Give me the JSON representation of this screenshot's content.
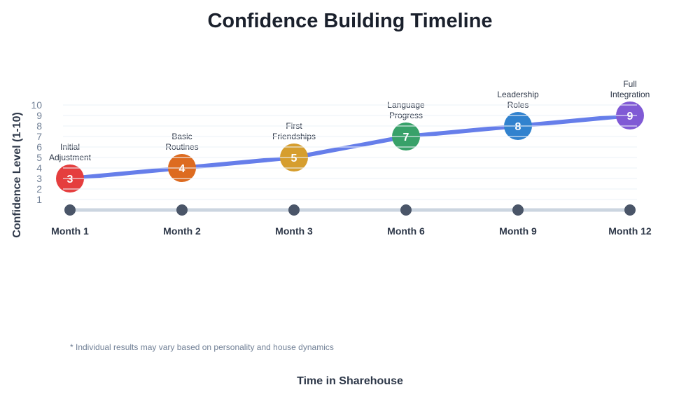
{
  "chart_data": {
    "type": "line",
    "title": "Confidence Building Timeline",
    "xlabel": "Time in Sharehouse",
    "ylabel": "Confidence Level (1-10)",
    "footnote": "* Individual results may vary based on personality and house dynamics",
    "ylim": [
      0,
      10
    ],
    "yticks": [
      1,
      2,
      3,
      4,
      5,
      6,
      7,
      8,
      9,
      10
    ],
    "grid": true,
    "line_color": "#667eea",
    "categories": [
      "Month 1",
      "Month 2",
      "Month 3",
      "Month 6",
      "Month 9",
      "Month 12"
    ],
    "points": [
      {
        "label": [
          "Initial",
          "Adjustment"
        ],
        "value": 3,
        "color": "#e53e3e"
      },
      {
        "label": [
          "Basic",
          "Routines"
        ],
        "value": 4,
        "color": "#dd6b20"
      },
      {
        "label": [
          "First",
          "Friendships"
        ],
        "value": 5,
        "color": "#d69e2e"
      },
      {
        "label": [
          "Language",
          "Progress"
        ],
        "value": 7,
        "color": "#38a169"
      },
      {
        "label": [
          "Leadership",
          "Roles"
        ],
        "value": 8,
        "color": "#3182ce"
      },
      {
        "label": [
          "Full",
          "Integration"
        ],
        "value": 9,
        "color": "#805ad5"
      }
    ]
  }
}
